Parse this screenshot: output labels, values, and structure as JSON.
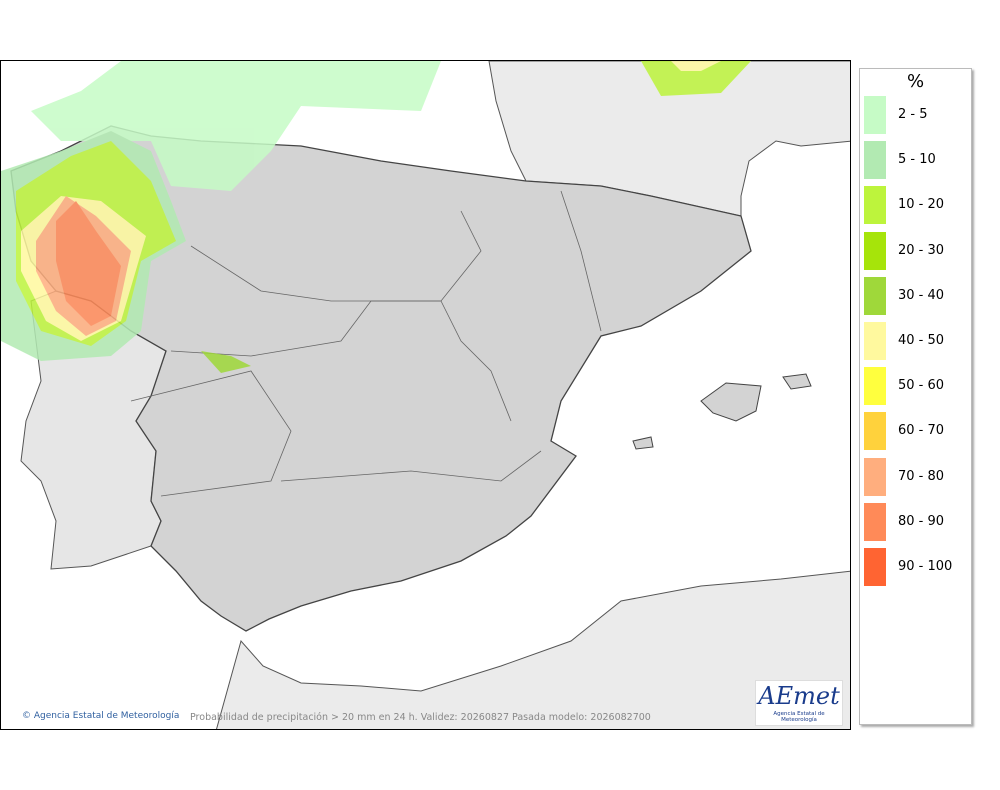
{
  "legend": {
    "title": "%",
    "items": [
      {
        "label": "2 - 5",
        "color": "#c6fbc6"
      },
      {
        "label": "5 - 10",
        "color": "#b2eab2"
      },
      {
        "label": "10 - 20",
        "color": "#bdf43c"
      },
      {
        "label": "20 - 30",
        "color": "#a6e40a"
      },
      {
        "label": "30 - 40",
        "color": "#9fd83a"
      },
      {
        "label": "40 - 50",
        "color": "#fff99e"
      },
      {
        "label": "50 - 60",
        "color": "#ffff3e"
      },
      {
        "label": "60 - 70",
        "color": "#ffd23c"
      },
      {
        "label": "70 - 80",
        "color": "#ffae7e"
      },
      {
        "label": "80 - 90",
        "color": "#ff8a58"
      },
      {
        "label": "90 - 100",
        "color": "#ff6432"
      }
    ]
  },
  "credit": "© Agencia Estatal de Meteorología",
  "caption": "Probabilidad de precipitación > 20 mm en 24 h. Validez: 20260827 Pasada modelo: 2026082700",
  "logo": {
    "name": "AEmet",
    "subtitle": "Agencia Estatal de Meteorología"
  }
}
